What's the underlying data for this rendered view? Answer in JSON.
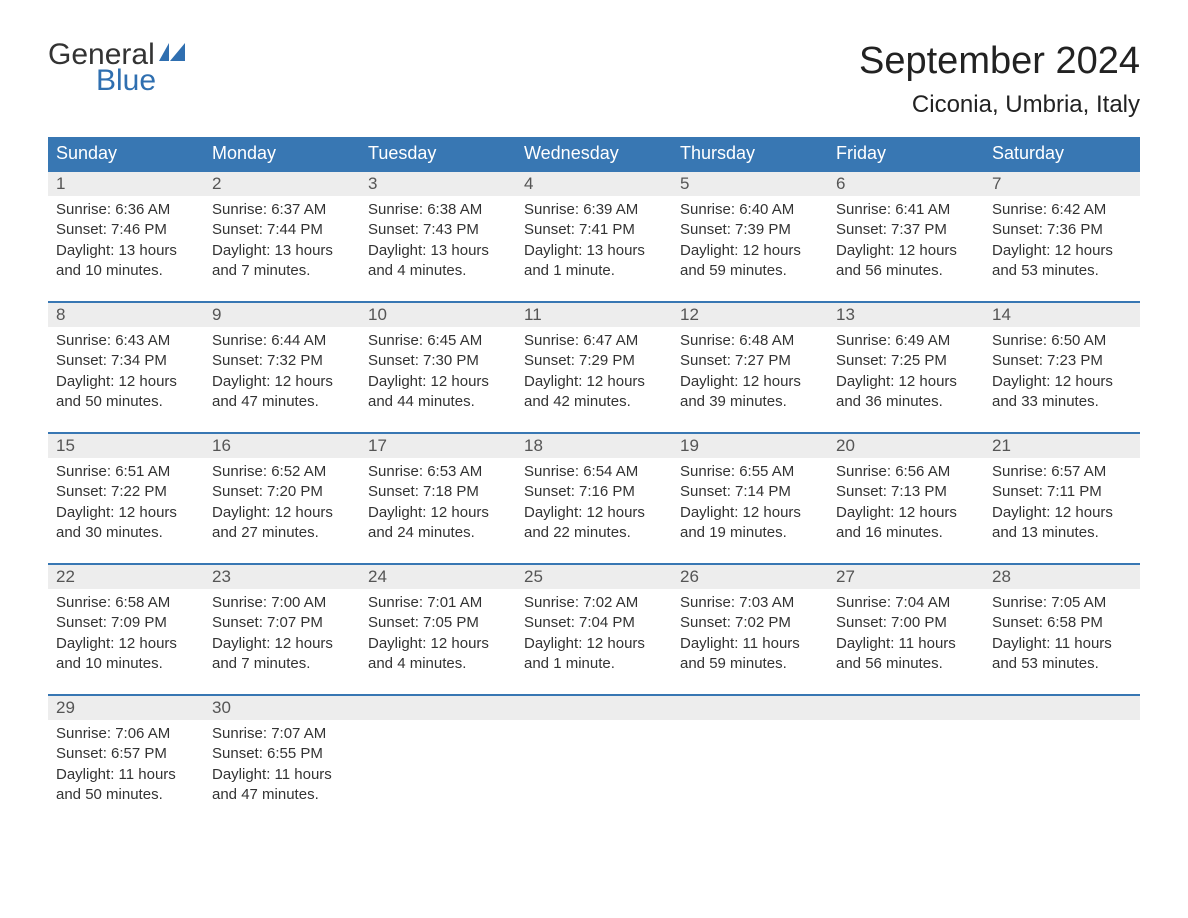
{
  "logo": {
    "line1": "General",
    "line2": "Blue",
    "text_color": "#333333",
    "accent_color": "#2f6fb0"
  },
  "title": "September 2024",
  "location": "Ciconia, Umbria, Italy",
  "colors": {
    "header_bg": "#3877b3",
    "header_text": "#ffffff",
    "daynum_bg": "#ededed",
    "daynum_border": "#3877b3",
    "body_text": "#333333",
    "background": "#ffffff"
  },
  "weekdays": [
    "Sunday",
    "Monday",
    "Tuesday",
    "Wednesday",
    "Thursday",
    "Friday",
    "Saturday"
  ],
  "weeks": [
    [
      {
        "day": "1",
        "sunrise": "Sunrise: 6:36 AM",
        "sunset": "Sunset: 7:46 PM",
        "daylight1": "Daylight: 13 hours",
        "daylight2": "and 10 minutes."
      },
      {
        "day": "2",
        "sunrise": "Sunrise: 6:37 AM",
        "sunset": "Sunset: 7:44 PM",
        "daylight1": "Daylight: 13 hours",
        "daylight2": "and 7 minutes."
      },
      {
        "day": "3",
        "sunrise": "Sunrise: 6:38 AM",
        "sunset": "Sunset: 7:43 PM",
        "daylight1": "Daylight: 13 hours",
        "daylight2": "and 4 minutes."
      },
      {
        "day": "4",
        "sunrise": "Sunrise: 6:39 AM",
        "sunset": "Sunset: 7:41 PM",
        "daylight1": "Daylight: 13 hours",
        "daylight2": "and 1 minute."
      },
      {
        "day": "5",
        "sunrise": "Sunrise: 6:40 AM",
        "sunset": "Sunset: 7:39 PM",
        "daylight1": "Daylight: 12 hours",
        "daylight2": "and 59 minutes."
      },
      {
        "day": "6",
        "sunrise": "Sunrise: 6:41 AM",
        "sunset": "Sunset: 7:37 PM",
        "daylight1": "Daylight: 12 hours",
        "daylight2": "and 56 minutes."
      },
      {
        "day": "7",
        "sunrise": "Sunrise: 6:42 AM",
        "sunset": "Sunset: 7:36 PM",
        "daylight1": "Daylight: 12 hours",
        "daylight2": "and 53 minutes."
      }
    ],
    [
      {
        "day": "8",
        "sunrise": "Sunrise: 6:43 AM",
        "sunset": "Sunset: 7:34 PM",
        "daylight1": "Daylight: 12 hours",
        "daylight2": "and 50 minutes."
      },
      {
        "day": "9",
        "sunrise": "Sunrise: 6:44 AM",
        "sunset": "Sunset: 7:32 PM",
        "daylight1": "Daylight: 12 hours",
        "daylight2": "and 47 minutes."
      },
      {
        "day": "10",
        "sunrise": "Sunrise: 6:45 AM",
        "sunset": "Sunset: 7:30 PM",
        "daylight1": "Daylight: 12 hours",
        "daylight2": "and 44 minutes."
      },
      {
        "day": "11",
        "sunrise": "Sunrise: 6:47 AM",
        "sunset": "Sunset: 7:29 PM",
        "daylight1": "Daylight: 12 hours",
        "daylight2": "and 42 minutes."
      },
      {
        "day": "12",
        "sunrise": "Sunrise: 6:48 AM",
        "sunset": "Sunset: 7:27 PM",
        "daylight1": "Daylight: 12 hours",
        "daylight2": "and 39 minutes."
      },
      {
        "day": "13",
        "sunrise": "Sunrise: 6:49 AM",
        "sunset": "Sunset: 7:25 PM",
        "daylight1": "Daylight: 12 hours",
        "daylight2": "and 36 minutes."
      },
      {
        "day": "14",
        "sunrise": "Sunrise: 6:50 AM",
        "sunset": "Sunset: 7:23 PM",
        "daylight1": "Daylight: 12 hours",
        "daylight2": "and 33 minutes."
      }
    ],
    [
      {
        "day": "15",
        "sunrise": "Sunrise: 6:51 AM",
        "sunset": "Sunset: 7:22 PM",
        "daylight1": "Daylight: 12 hours",
        "daylight2": "and 30 minutes."
      },
      {
        "day": "16",
        "sunrise": "Sunrise: 6:52 AM",
        "sunset": "Sunset: 7:20 PM",
        "daylight1": "Daylight: 12 hours",
        "daylight2": "and 27 minutes."
      },
      {
        "day": "17",
        "sunrise": "Sunrise: 6:53 AM",
        "sunset": "Sunset: 7:18 PM",
        "daylight1": "Daylight: 12 hours",
        "daylight2": "and 24 minutes."
      },
      {
        "day": "18",
        "sunrise": "Sunrise: 6:54 AM",
        "sunset": "Sunset: 7:16 PM",
        "daylight1": "Daylight: 12 hours",
        "daylight2": "and 22 minutes."
      },
      {
        "day": "19",
        "sunrise": "Sunrise: 6:55 AM",
        "sunset": "Sunset: 7:14 PM",
        "daylight1": "Daylight: 12 hours",
        "daylight2": "and 19 minutes."
      },
      {
        "day": "20",
        "sunrise": "Sunrise: 6:56 AM",
        "sunset": "Sunset: 7:13 PM",
        "daylight1": "Daylight: 12 hours",
        "daylight2": "and 16 minutes."
      },
      {
        "day": "21",
        "sunrise": "Sunrise: 6:57 AM",
        "sunset": "Sunset: 7:11 PM",
        "daylight1": "Daylight: 12 hours",
        "daylight2": "and 13 minutes."
      }
    ],
    [
      {
        "day": "22",
        "sunrise": "Sunrise: 6:58 AM",
        "sunset": "Sunset: 7:09 PM",
        "daylight1": "Daylight: 12 hours",
        "daylight2": "and 10 minutes."
      },
      {
        "day": "23",
        "sunrise": "Sunrise: 7:00 AM",
        "sunset": "Sunset: 7:07 PM",
        "daylight1": "Daylight: 12 hours",
        "daylight2": "and 7 minutes."
      },
      {
        "day": "24",
        "sunrise": "Sunrise: 7:01 AM",
        "sunset": "Sunset: 7:05 PM",
        "daylight1": "Daylight: 12 hours",
        "daylight2": "and 4 minutes."
      },
      {
        "day": "25",
        "sunrise": "Sunrise: 7:02 AM",
        "sunset": "Sunset: 7:04 PM",
        "daylight1": "Daylight: 12 hours",
        "daylight2": "and 1 minute."
      },
      {
        "day": "26",
        "sunrise": "Sunrise: 7:03 AM",
        "sunset": "Sunset: 7:02 PM",
        "daylight1": "Daylight: 11 hours",
        "daylight2": "and 59 minutes."
      },
      {
        "day": "27",
        "sunrise": "Sunrise: 7:04 AM",
        "sunset": "Sunset: 7:00 PM",
        "daylight1": "Daylight: 11 hours",
        "daylight2": "and 56 minutes."
      },
      {
        "day": "28",
        "sunrise": "Sunrise: 7:05 AM",
        "sunset": "Sunset: 6:58 PM",
        "daylight1": "Daylight: 11 hours",
        "daylight2": "and 53 minutes."
      }
    ],
    [
      {
        "day": "29",
        "sunrise": "Sunrise: 7:06 AM",
        "sunset": "Sunset: 6:57 PM",
        "daylight1": "Daylight: 11 hours",
        "daylight2": "and 50 minutes."
      },
      {
        "day": "30",
        "sunrise": "Sunrise: 7:07 AM",
        "sunset": "Sunset: 6:55 PM",
        "daylight1": "Daylight: 11 hours",
        "daylight2": "and 47 minutes."
      },
      {
        "day": "",
        "sunrise": "",
        "sunset": "",
        "daylight1": "",
        "daylight2": ""
      },
      {
        "day": "",
        "sunrise": "",
        "sunset": "",
        "daylight1": "",
        "daylight2": ""
      },
      {
        "day": "",
        "sunrise": "",
        "sunset": "",
        "daylight1": "",
        "daylight2": ""
      },
      {
        "day": "",
        "sunrise": "",
        "sunset": "",
        "daylight1": "",
        "daylight2": ""
      },
      {
        "day": "",
        "sunrise": "",
        "sunset": "",
        "daylight1": "",
        "daylight2": ""
      }
    ]
  ]
}
